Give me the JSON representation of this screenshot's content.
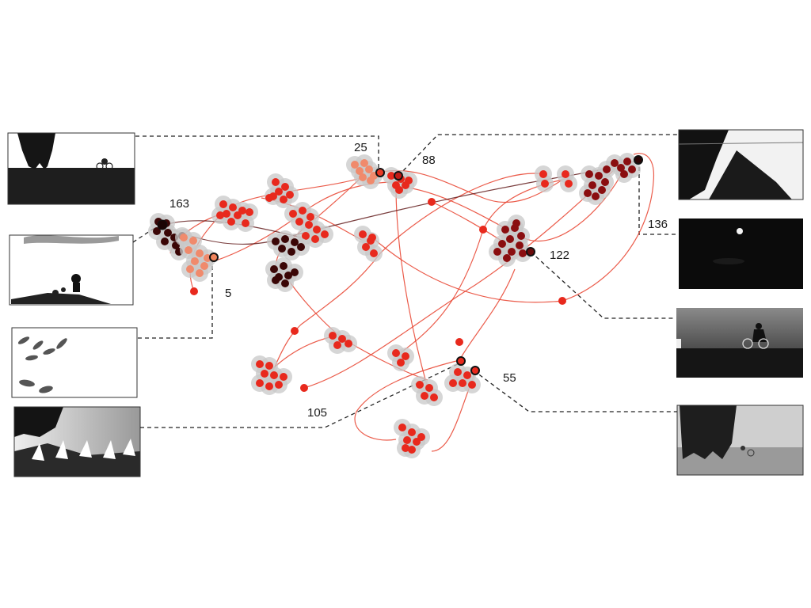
{
  "labels": {
    "l163": "163",
    "l5": "5",
    "l25": "25",
    "l88": "88",
    "l136": "136",
    "l122": "122",
    "l55": "55",
    "l105": "105"
  },
  "colors": {
    "early": "#f08a6c",
    "mid": "#e8291d",
    "late": "#8a0e10",
    "final": "#3a0606",
    "halo": "#c8c8c8",
    "trail": "#e8402c"
  }
}
